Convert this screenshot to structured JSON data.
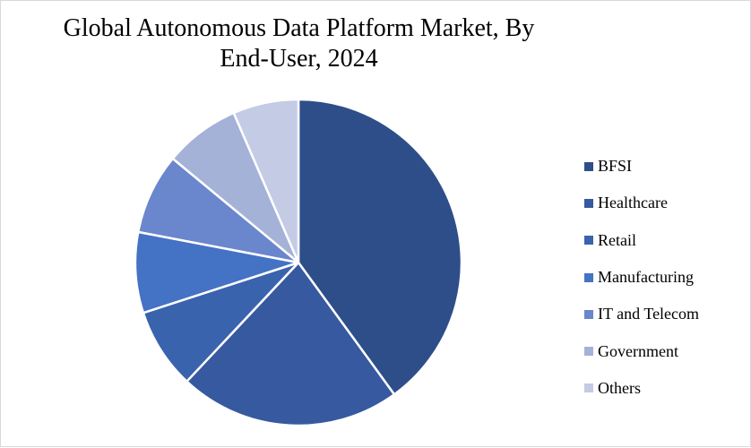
{
  "chart_data": {
    "type": "pie",
    "title": "Global Autonomous Data Platform Market, By End-User, 2024",
    "categories": [
      "BFSI",
      "Healthcare",
      "Retail",
      "Manufacturing",
      "IT and Telecom",
      "Government",
      "Others"
    ],
    "values": [
      40,
      22,
      8,
      8,
      8,
      7.5,
      6.5
    ],
    "colors": [
      "#2e4e8a",
      "#3659a0",
      "#3a63ad",
      "#4472c4",
      "#6a86cc",
      "#a4b2d8",
      "#c3cbe5"
    ],
    "legend_position": "right",
    "start": "top, clockwise"
  }
}
